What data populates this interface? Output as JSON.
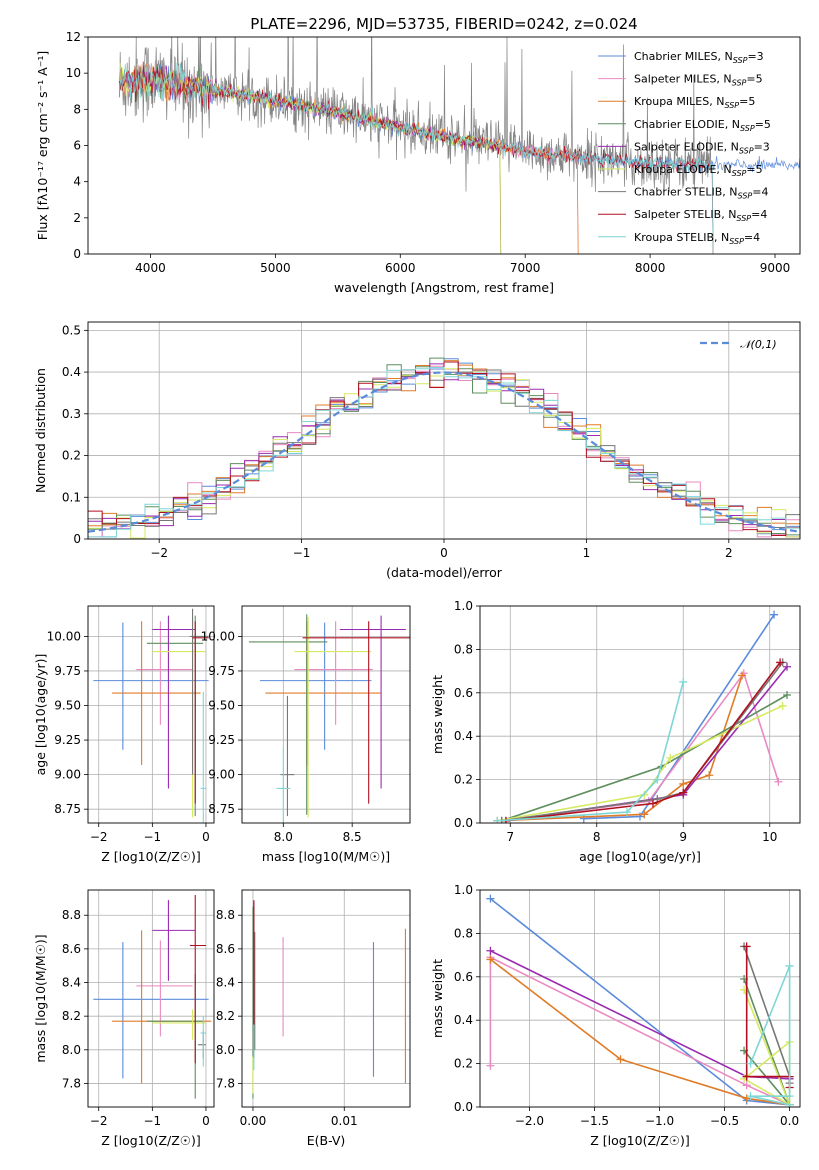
{
  "colors": {
    "chabrier_miles": "#5b8bdb",
    "salpeter_miles": "#e989c2",
    "kroupa_miles": "#e07b28",
    "chabrier_elodie": "#5e8f5e",
    "salpeter_elodie": "#9a2bb0",
    "kroupa_elodie": "#d5ea62",
    "chabrier_stelib": "#777777",
    "salpeter_stelib": "#b01020",
    "kroupa_stelib": "#7fd6d6",
    "grid": "#b0b0b0",
    "gauss": "#5b8bdb"
  },
  "chart_data": [
    {
      "id": "spectrum",
      "type": "line",
      "title": "PLATE=2296, MJD=53735, FIBERID=0242, z=0.024",
      "xlabel": "wavelength [Angstrom, rest frame]",
      "ylabel": "Flux [fλ10⁻¹⁷ erg cm⁻² s⁻¹ A⁻¹]",
      "xlim": [
        3500,
        9200
      ],
      "ylim": [
        0,
        12
      ],
      "xticks": [
        "4000",
        "5000",
        "6000",
        "7000",
        "8000",
        "9000"
      ],
      "yticks": [
        "0",
        "2",
        "4",
        "6",
        "8",
        "10",
        "12"
      ],
      "grid": false,
      "legend_position": "top-right",
      "legend": [
        "Chabrier MILES, N_SSP=3",
        "Salpeter MILES, N_SSP=5",
        "Kroupa MILES, N_SSP=5",
        "Chabrier ELODIE, N_SSP=5",
        "Salpeter ELODIE, N_SSP=3",
        "Kroupa ELODIE, N_SSP=5",
        "Chabrier STELIB, N_SSP=4",
        "Salpeter STELIB, N_SSP=4",
        "Kroupa STELIB, N_SSP=4"
      ],
      "continuum": {
        "x": [
          3750,
          4000,
          4300,
          4600,
          5000,
          5500,
          6000,
          6500,
          7000,
          7500,
          8000,
          8500
        ],
        "y": [
          9.5,
          9.7,
          9.3,
          9.0,
          8.5,
          7.8,
          7.0,
          6.3,
          5.7,
          5.3,
          5.0,
          4.9
        ]
      },
      "coverage": [
        [
          3750,
          9200
        ],
        [
          3750,
          7420
        ],
        [
          3750,
          7420
        ],
        [
          3750,
          6800
        ],
        [
          3750,
          6800
        ],
        [
          3750,
          6800
        ],
        [
          3750,
          8500
        ],
        [
          3750,
          8500
        ],
        [
          3750,
          8500
        ]
      ]
    },
    {
      "id": "residuals",
      "type": "histogram",
      "xlabel": "(data-model)/error",
      "ylabel": "Normed distribution",
      "xlim": [
        -2.5,
        2.5
      ],
      "ylim": [
        0,
        0.52
      ],
      "xticks": [
        -2,
        -1,
        0,
        1,
        2
      ],
      "yticks": [
        0.0,
        0.1,
        0.2,
        0.3,
        0.4,
        0.5
      ],
      "grid": true,
      "legend_position": "top-right",
      "legend": [
        "𝒩(0,1)"
      ],
      "bin_width": 0.1
    },
    {
      "id": "age_vs_Z",
      "type": "errorbar",
      "xlabel": "Z [log10(Z/Z☉)]",
      "ylabel": "age  [log10(age/yr)]",
      "xlim": [
        -2.2,
        0.15
      ],
      "ylim": [
        8.65,
        10.22
      ],
      "xticks": [
        -2,
        -1,
        0
      ],
      "yticks": [
        "8.75",
        "9.00",
        "9.25",
        "9.50",
        "9.75",
        "10.00"
      ],
      "grid": true,
      "points": [
        {
          "series": "chabrier_miles",
          "x": -1.55,
          "xerr": [
            0.55,
            1.6
          ],
          "y": 9.68,
          "yerr": [
            0.5,
            0.42
          ]
        },
        {
          "series": "salpeter_miles",
          "x": -0.85,
          "xerr": [
            0.45,
            0.6
          ],
          "y": 9.76,
          "yerr": [
            0.4,
            0.35
          ]
        },
        {
          "series": "kroupa_miles",
          "x": -1.2,
          "xerr": [
            0.55,
            1.1
          ],
          "y": 9.59,
          "yerr": [
            0.52,
            0.52
          ]
        },
        {
          "series": "chabrier_elodie",
          "x": -0.2,
          "xerr": [
            0.9,
            0.15
          ],
          "y": 9.95,
          "yerr": [
            1.25,
            0.2
          ]
        },
        {
          "series": "salpeter_elodie",
          "x": -0.7,
          "xerr": [
            0.3,
            0.5
          ],
          "y": 10.05,
          "yerr": [
            1.15,
            0.1
          ]
        },
        {
          "series": "kroupa_elodie",
          "x": -0.25,
          "xerr": [
            0.75,
            0.25
          ],
          "y": 9.89,
          "yerr": [
            1.2,
            0.25
          ]
        },
        {
          "series": "chabrier_stelib",
          "x": -0.25,
          "xerr": [
            0.05,
            0.3
          ],
          "y": 10.0,
          "yerr": [
            1.0,
            0.2
          ]
        },
        {
          "series": "salpeter_stelib",
          "x": -0.2,
          "xerr": [
            0.05,
            0.25
          ],
          "y": 9.99,
          "yerr": [
            1.2,
            0.12
          ]
        },
        {
          "series": "kroupa_stelib",
          "x": -0.05,
          "xerr": [
            0.05,
            0.05
          ],
          "y": 8.9,
          "yerr": [
            0.6,
            0.7
          ]
        }
      ]
    },
    {
      "id": "age_vs_mass",
      "type": "errorbar",
      "xlabel": "mass [log10(M/M☉)]",
      "ylabel": "",
      "xlim": [
        7.7,
        8.92
      ],
      "ylim": [
        8.65,
        10.22
      ],
      "xticks": [
        "8.0",
        "8.5"
      ],
      "yticks": [
        "8.75",
        "9.00",
        "9.25",
        "9.50",
        "9.75",
        "10.00"
      ],
      "grid": true,
      "points": [
        {
          "series": "chabrier_miles",
          "x": 8.3,
          "xerr": [
            0.47,
            0.34
          ],
          "y": 9.68,
          "yerr": [
            0.5,
            0.42
          ]
        },
        {
          "series": "salpeter_miles",
          "x": 8.38,
          "xerr": [
            0.3,
            0.27
          ],
          "y": 9.76,
          "yerr": [
            0.4,
            0.35
          ]
        },
        {
          "series": "kroupa_miles",
          "x": 8.17,
          "xerr": [
            0.3,
            0.54
          ],
          "y": 9.59,
          "yerr": [
            0.52,
            0.52
          ]
        },
        {
          "series": "chabrier_elodie",
          "x": 8.17,
          "xerr": [
            0.42,
            0.15
          ],
          "y": 9.96,
          "yerr": [
            1.25,
            0.2
          ]
        },
        {
          "series": "salpeter_elodie",
          "x": 8.71,
          "xerr": [
            0.3,
            0.18
          ],
          "y": 10.05,
          "yerr": [
            1.15,
            0.1
          ]
        },
        {
          "series": "kroupa_elodie",
          "x": 8.18,
          "xerr": [
            0.1,
            0.46
          ],
          "y": 9.89,
          "yerr": [
            1.2,
            0.25
          ]
        },
        {
          "series": "chabrier_stelib",
          "x": 8.03,
          "xerr": [
            0.05,
            0.05
          ],
          "y": 9.0,
          "yerr": [
            0.3,
            0.57
          ]
        },
        {
          "series": "salpeter_stelib",
          "x": 8.62,
          "xerr": [
            0.48,
            0.3
          ],
          "y": 9.99,
          "yerr": [
            1.2,
            0.12
          ]
        },
        {
          "series": "kroupa_stelib",
          "x": 8.0,
          "xerr": [
            0.05,
            0.05
          ],
          "y": 8.9,
          "yerr": [
            0.3,
            0.3
          ]
        }
      ]
    },
    {
      "id": "mass_vs_Z",
      "type": "errorbar",
      "xlabel": "Z [log10(Z/Z☉)]",
      "ylabel": "mass [log10(M/M☉)]",
      "xlim": [
        -2.2,
        0.15
      ],
      "ylim": [
        7.66,
        8.95
      ],
      "xticks": [
        -2,
        -1,
        0
      ],
      "yticks": [
        "7.8",
        "8.0",
        "8.2",
        "8.4",
        "8.6",
        "8.8"
      ],
      "grid": true,
      "points": [
        {
          "series": "chabrier_miles",
          "x": -1.55,
          "xerr": [
            0.55,
            1.6
          ],
          "y": 8.3,
          "yerr": [
            0.47,
            0.34
          ]
        },
        {
          "series": "salpeter_miles",
          "x": -0.85,
          "xerr": [
            0.45,
            0.6
          ],
          "y": 8.38,
          "yerr": [
            0.3,
            0.27
          ]
        },
        {
          "series": "kroupa_miles",
          "x": -1.2,
          "xerr": [
            0.55,
            1.3
          ],
          "y": 8.17,
          "yerr": [
            0.37,
            0.54
          ]
        },
        {
          "series": "chabrier_elodie",
          "x": -0.2,
          "xerr": [
            0.9,
            0.15
          ],
          "y": 8.17,
          "yerr": [
            0.46,
            0.28
          ]
        },
        {
          "series": "salpeter_elodie",
          "x": -0.7,
          "xerr": [
            0.3,
            0.5
          ],
          "y": 8.71,
          "yerr": [
            0.3,
            0.18
          ]
        },
        {
          "series": "kroupa_elodie",
          "x": -0.25,
          "xerr": [
            0.75,
            0.25
          ],
          "y": 8.16,
          "yerr": [
            0.1,
            0.08
          ]
        },
        {
          "series": "chabrier_stelib",
          "x": -0.05,
          "xerr": [
            0.1,
            0.05
          ],
          "y": 8.03,
          "yerr": [
            0.08,
            0.08
          ]
        },
        {
          "series": "salpeter_stelib",
          "x": -0.2,
          "xerr": [
            0.1,
            0.2
          ],
          "y": 8.62,
          "yerr": [
            0.7,
            0.3
          ]
        },
        {
          "series": "kroupa_stelib",
          "x": -0.05,
          "xerr": [
            0.05,
            0.05
          ],
          "y": 8.1,
          "yerr": [
            0.2,
            0.1
          ]
        }
      ]
    },
    {
      "id": "mass_vs_EBV",
      "type": "errorbar",
      "xlabel": "E(B-V)",
      "ylabel": "",
      "xlim": [
        -0.0012,
        0.0172
      ],
      "ylim": [
        7.66,
        8.95
      ],
      "xticks": [
        "0.00",
        "0.01"
      ],
      "yticks": [
        "7.8",
        "8.0",
        "8.2",
        "8.4",
        "8.6",
        "8.8"
      ],
      "grid": true,
      "points": [
        {
          "series": "chabrier_miles",
          "x": 0.0132,
          "xerr": [
            0,
            0
          ],
          "y": 8.24,
          "yerr": [
            0.4,
            0.4
          ]
        },
        {
          "series": "salpeter_miles",
          "x": 0.0033,
          "xerr": [
            0,
            0
          ],
          "y": 8.38,
          "yerr": [
            0.3,
            0.29
          ]
        },
        {
          "series": "kroupa_miles",
          "x": 0.0167,
          "xerr": [
            0,
            0
          ],
          "y": 8.26,
          "yerr": [
            0.46,
            0.46
          ]
        },
        {
          "series": "chabrier_elodie",
          "x": 0.0,
          "xerr": [
            0,
            0
          ],
          "y": 8.3,
          "yerr": [
            0.59,
            0.55
          ]
        },
        {
          "series": "salpeter_elodie",
          "x": 0.0001,
          "xerr": [
            0,
            0
          ],
          "y": 8.3,
          "yerr": [
            0.3,
            0.58
          ]
        },
        {
          "series": "kroupa_elodie",
          "x": 0.0,
          "xerr": [
            0,
            0
          ],
          "y": 7.84,
          "yerr": [
            0.1,
            0.12
          ]
        },
        {
          "series": "chabrier_stelib",
          "x": 0.0002,
          "xerr": [
            0,
            0
          ],
          "y": 8.2,
          "yerr": [
            0.2,
            0.5
          ]
        },
        {
          "series": "salpeter_stelib",
          "x": 0.0001,
          "xerr": [
            0,
            0
          ],
          "y": 8.45,
          "yerr": [
            0.5,
            0.44
          ]
        },
        {
          "series": "kroupa_stelib",
          "x": 0.0001,
          "xerr": [
            0,
            0
          ],
          "y": 8.0,
          "yerr": [
            0.12,
            0.15
          ]
        }
      ]
    },
    {
      "id": "massweight_vs_age",
      "type": "line",
      "xlabel": "age  [log10(age/yr)]",
      "ylabel": "mass weight",
      "xlim": [
        6.65,
        10.35
      ],
      "ylim": [
        0,
        1.0
      ],
      "xticks": [
        7,
        8,
        9,
        10
      ],
      "yticks": [
        "0.0",
        "0.2",
        "0.4",
        "0.6",
        "0.8",
        "1.0"
      ],
      "grid": true,
      "series": [
        {
          "key": "chabrier_miles",
          "x": [
            7.85,
            8.5,
            10.05
          ],
          "y": [
            0.02,
            0.03,
            0.96
          ]
        },
        {
          "key": "salpeter_miles",
          "x": [
            6.9,
            8.6,
            9.7,
            10.1
          ],
          "y": [
            0.01,
            0.1,
            0.69,
            0.19
          ]
        },
        {
          "key": "kroupa_miles",
          "x": [
            6.85,
            8.55,
            9.0,
            9.3,
            9.68
          ],
          "y": [
            0.01,
            0.04,
            0.18,
            0.22,
            0.68
          ]
        },
        {
          "key": "chabrier_elodie",
          "x": [
            6.9,
            8.75,
            10.2
          ],
          "y": [
            0.01,
            0.26,
            0.59
          ]
        },
        {
          "key": "salpeter_elodie",
          "x": [
            6.95,
            9.0,
            10.2
          ],
          "y": [
            0.01,
            0.13,
            0.72
          ]
        },
        {
          "key": "kroupa_elodie",
          "x": [
            6.85,
            8.55,
            8.85,
            10.15
          ],
          "y": [
            0.01,
            0.13,
            0.3,
            0.54
          ]
        },
        {
          "key": "chabrier_stelib",
          "x": [
            6.9,
            8.7,
            9.0,
            10.15
          ],
          "y": [
            0.01,
            0.11,
            0.14,
            0.74
          ]
        },
        {
          "key": "salpeter_stelib",
          "x": [
            6.95,
            8.65,
            9.0,
            10.12
          ],
          "y": [
            0.01,
            0.09,
            0.14,
            0.74
          ]
        },
        {
          "key": "kroupa_stelib",
          "x": [
            6.85,
            8.35,
            8.7,
            9.0
          ],
          "y": [
            0.01,
            0.05,
            0.2,
            0.65
          ]
        }
      ]
    },
    {
      "id": "massweight_vs_Z",
      "type": "line",
      "xlabel": "Z [log10(Z/Z☉)]",
      "ylabel": "mass weight",
      "xlim": [
        -2.38,
        0.08
      ],
      "ylim": [
        0,
        1.0
      ],
      "xticks": [
        "-2.0",
        "-1.5",
        "-1.0",
        "-0.5",
        "0.0"
      ],
      "yticks": [
        "0.0",
        "0.2",
        "0.4",
        "0.6",
        "0.8",
        "1.0"
      ],
      "grid": true,
      "series": [
        {
          "key": "chabrier_miles",
          "x": [
            -2.3,
            -0.33,
            0.0
          ],
          "y": [
            0.96,
            0.03,
            0.01
          ]
        },
        {
          "key": "salpeter_miles",
          "x": [
            -2.3,
            -2.3,
            -0.33,
            0.0
          ],
          "y": [
            0.19,
            0.69,
            0.1,
            0.01
          ]
        },
        {
          "key": "kroupa_miles",
          "x": [
            -2.3,
            -1.3,
            -0.33,
            0.0
          ],
          "y": [
            0.68,
            0.22,
            0.04,
            0.01
          ]
        },
        {
          "key": "chabrier_elodie",
          "x": [
            -0.35,
            0.0,
            -0.35,
            0.0
          ],
          "y": [
            0.59,
            0.01,
            0.26,
            0.01
          ]
        },
        {
          "key": "salpeter_elodie",
          "x": [
            -2.3,
            -0.33,
            0.0
          ],
          "y": [
            0.72,
            0.14,
            0.13
          ]
        },
        {
          "key": "kroupa_elodie",
          "x": [
            -0.35,
            0.0,
            0.0,
            -0.35,
            0.0
          ],
          "y": [
            0.54,
            0.01,
            0.3,
            0.13,
            0.01
          ]
        },
        {
          "key": "chabrier_stelib",
          "x": [
            -0.35,
            0.0,
            0.0
          ],
          "y": [
            0.74,
            0.14,
            0.11
          ]
        },
        {
          "key": "salpeter_stelib",
          "x": [
            -0.33,
            -0.33,
            0.0,
            0.0
          ],
          "y": [
            0.74,
            0.14,
            0.14,
            0.09
          ]
        },
        {
          "key": "kroupa_stelib",
          "x": [
            -0.3,
            0.0,
            0.0,
            -0.3,
            0.0
          ],
          "y": [
            0.2,
            0.65,
            0.05,
            0.05,
            0.01
          ]
        }
      ]
    }
  ]
}
